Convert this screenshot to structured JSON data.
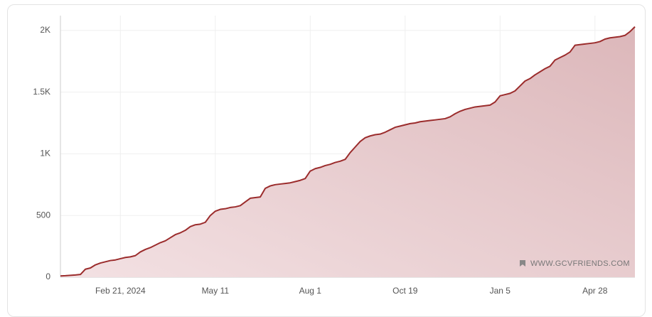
{
  "chart_data": {
    "type": "area",
    "categories": [
      null,
      null,
      null,
      null,
      null,
      null,
      null,
      null,
      null,
      null,
      null,
      null,
      "Feb 21, 2024",
      null,
      null,
      null,
      null,
      null,
      null,
      null,
      null,
      null,
      null,
      null,
      null,
      null,
      null,
      null,
      null,
      null,
      null,
      "May 11",
      null,
      null,
      null,
      null,
      null,
      null,
      null,
      null,
      null,
      null,
      null,
      null,
      null,
      null,
      null,
      null,
      null,
      null,
      "Aug 1",
      null,
      null,
      null,
      null,
      null,
      null,
      null,
      null,
      null,
      null,
      null,
      null,
      null,
      null,
      null,
      null,
      null,
      null,
      "Oct 19",
      null,
      null,
      null,
      null,
      null,
      null,
      null,
      null,
      null,
      null,
      null,
      null,
      null,
      null,
      null,
      null,
      null,
      null,
      "Jan 5",
      null,
      null,
      null,
      null,
      null,
      null,
      null,
      null,
      null,
      null,
      null,
      null,
      null,
      null,
      null,
      null,
      null,
      null,
      "Apr 28",
      null,
      null,
      null,
      null,
      null,
      null,
      null,
      null
    ],
    "values": [
      10,
      12,
      15,
      18,
      22,
      65,
      75,
      100,
      115,
      125,
      135,
      140,
      150,
      160,
      165,
      175,
      205,
      225,
      240,
      260,
      280,
      295,
      320,
      345,
      360,
      380,
      410,
      425,
      430,
      445,
      500,
      535,
      550,
      555,
      565,
      570,
      580,
      610,
      640,
      645,
      650,
      720,
      740,
      750,
      755,
      760,
      765,
      775,
      785,
      800,
      860,
      880,
      890,
      905,
      915,
      930,
      940,
      955,
      1010,
      1055,
      1100,
      1130,
      1145,
      1155,
      1160,
      1175,
      1195,
      1215,
      1225,
      1235,
      1245,
      1250,
      1260,
      1265,
      1270,
      1275,
      1280,
      1285,
      1300,
      1325,
      1345,
      1360,
      1370,
      1380,
      1385,
      1390,
      1395,
      1420,
      1470,
      1480,
      1490,
      1510,
      1550,
      1590,
      1610,
      1640,
      1665,
      1690,
      1710,
      1760,
      1780,
      1800,
      1825,
      1880,
      1885,
      1890,
      1895,
      1900,
      1910,
      1930,
      1940,
      1945,
      1950,
      1960,
      1990,
      2030
    ],
    "color": "#9b2c2c",
    "ylim": [
      0,
      2120
    ],
    "yticks": [
      0,
      500,
      {
        "value": 1000,
        "label": "1K"
      },
      {
        "value": 1500,
        "label": "1.5K"
      },
      {
        "value": 2000,
        "label": "2K"
      }
    ],
    "grid": true,
    "watermark": "WWW.GCVFRIENDS.COM"
  }
}
